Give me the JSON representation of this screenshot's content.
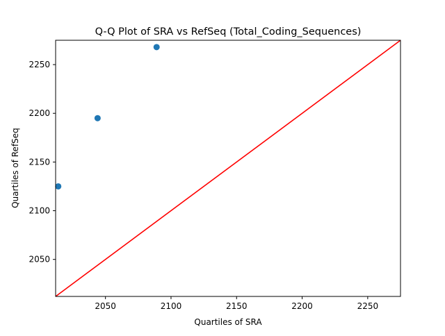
{
  "chart_data": {
    "type": "scatter",
    "title": "Q-Q Plot of SRA vs RefSeq (Total_Coding_Sequences)",
    "xlabel": "Quartiles of SRA",
    "ylabel": "Quartiles of RefSeq",
    "xlim": [
      2012,
      2275
    ],
    "ylim": [
      2012,
      2275
    ],
    "xticks": [
      2050,
      2100,
      2150,
      2200,
      2250
    ],
    "yticks": [
      2050,
      2100,
      2150,
      2200,
      2250
    ],
    "grid": false,
    "legend": "none",
    "points": [
      {
        "x": 2014,
        "y": 2125
      },
      {
        "x": 2044,
        "y": 2195
      },
      {
        "x": 2089,
        "y": 2268
      }
    ],
    "reference_line": {
      "from": [
        2012,
        2012
      ],
      "to": [
        2275,
        2275
      ]
    },
    "colors": {
      "points": "#1f77b4",
      "reference_line": "#ff0000",
      "axes": "#000000"
    }
  }
}
